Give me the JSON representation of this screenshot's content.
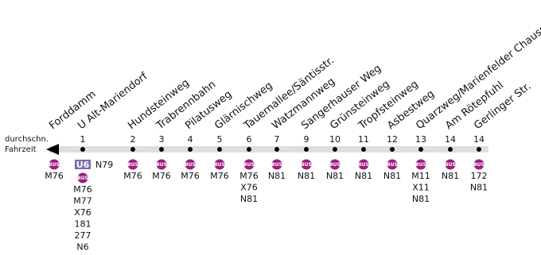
{
  "legend": {
    "label": [
      "durchschn.",
      "Fahrzeit"
    ]
  },
  "bus_badge": "BUS",
  "stops": [
    {
      "name": "Forddamm",
      "minutes": null,
      "lines": [
        "M76"
      ]
    },
    {
      "name": "U Alt-Mariendorf",
      "minutes": 1,
      "rail": "U6",
      "rail_extra": "N79",
      "lines": [
        "M76",
        "M77",
        "X76",
        "181",
        "277",
        "N6"
      ]
    },
    {
      "name": "Hundsteinweg",
      "minutes": 2,
      "lines": [
        "M76"
      ]
    },
    {
      "name": "Trabrennbahn",
      "minutes": 3,
      "lines": [
        "M76"
      ]
    },
    {
      "name": "Pilatusweg",
      "minutes": 4,
      "lines": [
        "M76"
      ]
    },
    {
      "name": "Glärnischweg",
      "minutes": 5,
      "lines": [
        "M76"
      ]
    },
    {
      "name": "Tauernallee/Säntisstr.",
      "minutes": 6,
      "lines": [
        "M76",
        "X76",
        "N81"
      ]
    },
    {
      "name": "Watzmannweg",
      "minutes": 7,
      "lines": [
        "N81"
      ]
    },
    {
      "name": "Sangerhauser Weg",
      "minutes": 9,
      "lines": [
        "N81"
      ]
    },
    {
      "name": "Grünsteinweg",
      "minutes": 10,
      "lines": [
        "N81"
      ]
    },
    {
      "name": "Tropfsteinweg",
      "minutes": 11,
      "lines": [
        "N81"
      ]
    },
    {
      "name": "Asbestweg",
      "minutes": 12,
      "lines": [
        "N81"
      ]
    },
    {
      "name": "Quarzweg/Marienfelder Chaussee",
      "minutes": 13,
      "lines": [
        "M11",
        "X11",
        "N81"
      ]
    },
    {
      "name": "Am Rötepfuhl",
      "minutes": 14,
      "lines": [
        "N81"
      ]
    },
    {
      "name": "Gerlinger Str.",
      "minutes": 14,
      "lines": [
        "172",
        "N81"
      ]
    }
  ]
}
